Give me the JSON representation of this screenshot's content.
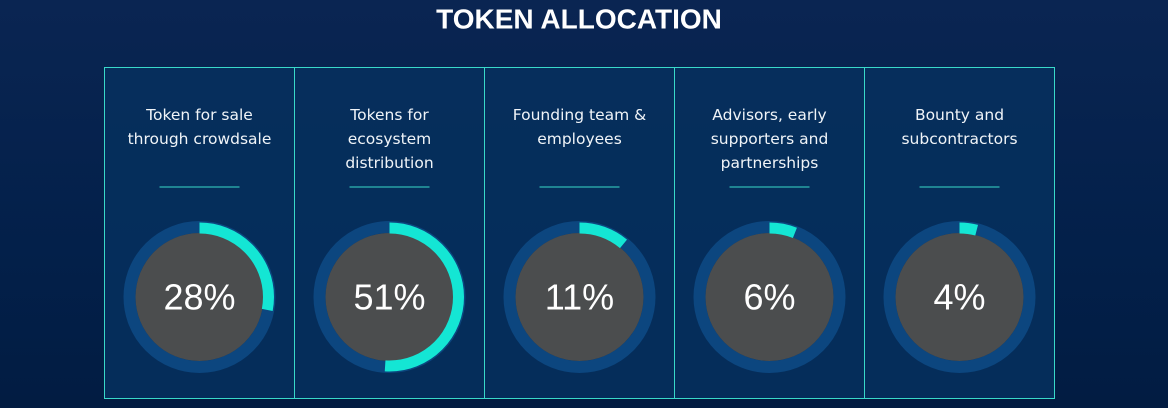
{
  "title": "TOKEN ALLOCATION",
  "cards": [
    {
      "label_lines": [
        "Token for sale",
        "through crowdsale"
      ],
      "value": 28,
      "value_label": "28%"
    },
    {
      "label_lines": [
        "Tokens for",
        "ecosystem",
        "distribution"
      ],
      "value": 51,
      "value_label": "51%"
    },
    {
      "label_lines": [
        "Founding team &",
        "employees"
      ],
      "value": 11,
      "value_label": "11%"
    },
    {
      "label_lines": [
        "Advisors, early",
        "supporters and",
        "partnerships"
      ],
      "value": 6,
      "value_label": "6%"
    },
    {
      "label_lines": [
        "Bounty and",
        "subcontractors"
      ],
      "value": 4,
      "value_label": "4%"
    }
  ]
}
